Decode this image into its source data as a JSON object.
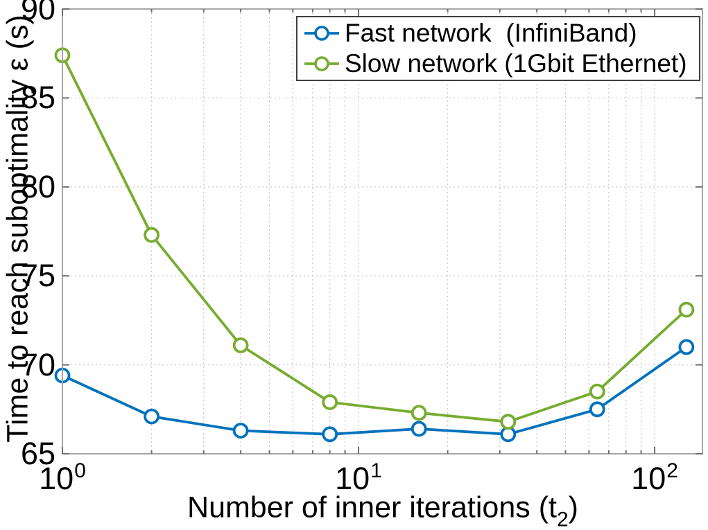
{
  "chart_data": {
    "type": "line",
    "title": "",
    "x_scale": "log",
    "xlim": [
      1,
      145
    ],
    "ylim": [
      65,
      90
    ],
    "grid": true,
    "marker": "circle",
    "legend_position": "top-right",
    "x": [
      1,
      2,
      4,
      8,
      16,
      32,
      64,
      128
    ],
    "series": [
      {
        "name": "Fast network  (InfiniBand)",
        "color": "#0072BD",
        "values": [
          69.4,
          67.1,
          66.3,
          66.1,
          66.4,
          66.1,
          67.5,
          71.0
        ]
      },
      {
        "name": "Slow network (1Gbit Ethernet)",
        "color": "#77AC30",
        "values": [
          87.4,
          77.3,
          71.1,
          67.9,
          67.3,
          66.8,
          68.5,
          73.1
        ]
      }
    ],
    "xlabel": "Number of inner iterations (t2)",
    "xlabel_parts": {
      "pre": "Number of inner iterations (t",
      "sub": "2",
      "post": ")"
    },
    "ylabel": "Time to reach suboptimality ε (s)",
    "y_ticks": [
      65,
      70,
      75,
      80,
      85,
      90
    ],
    "x_major_ticks": [
      {
        "value": 1,
        "base": "10",
        "exp": "0"
      },
      {
        "value": 10,
        "base": "10",
        "exp": "1"
      },
      {
        "value": 100,
        "base": "10",
        "exp": "2"
      }
    ],
    "x_minor_ticks": [
      2,
      3,
      4,
      5,
      6,
      7,
      8,
      9,
      20,
      30,
      40,
      50,
      60,
      70,
      80,
      90
    ],
    "axis_color": "#a6a6a6",
    "tick_color": "#6e6e6e",
    "grid_color": "#c9c9c9"
  }
}
